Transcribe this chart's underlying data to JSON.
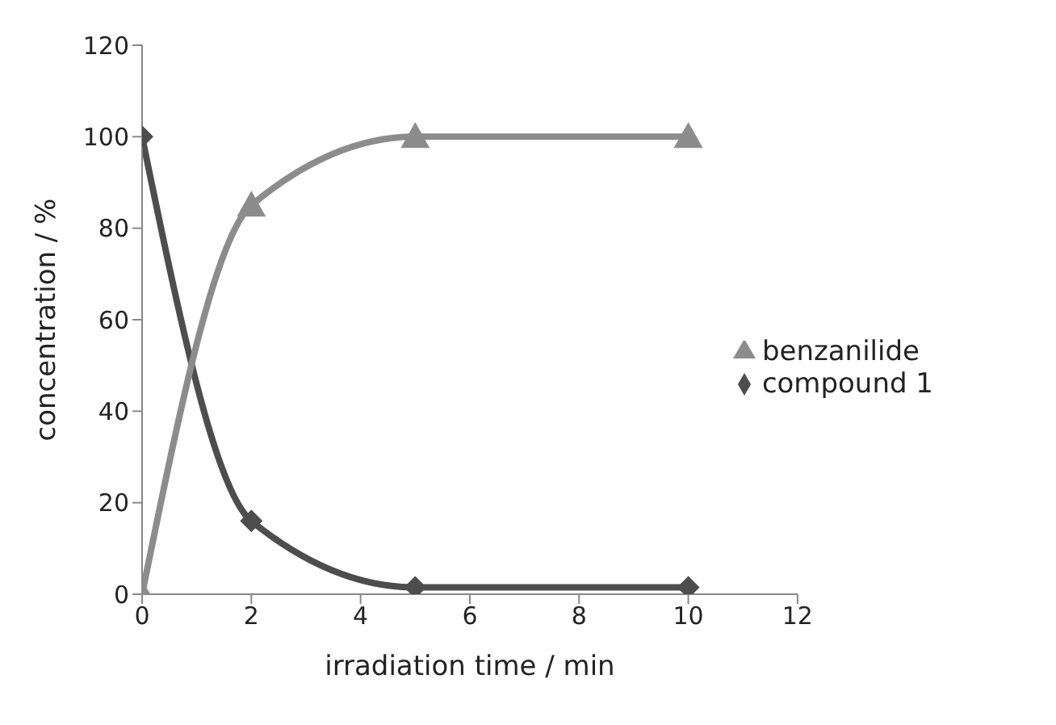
{
  "chart_data": {
    "type": "line",
    "xlabel": "irradiation time / min",
    "ylabel": "concentration / %",
    "x": [
      0,
      2,
      5,
      10
    ],
    "series": [
      {
        "name": "compound 1",
        "color": "#4d4d4d",
        "values": [
          100,
          16,
          1.5,
          1.5
        ],
        "marker": "diamond"
      },
      {
        "name": "benzanilide",
        "color": "#8c8c8c",
        "values": [
          0,
          85,
          100,
          100
        ],
        "marker": "triangle"
      }
    ],
    "xlim": [
      0,
      12
    ],
    "xticks": [
      0,
      2,
      4,
      6,
      8,
      10,
      12
    ],
    "ylim": [
      0,
      120
    ],
    "yticks": [
      0,
      20,
      40,
      60,
      80,
      100,
      120
    ],
    "grid": false,
    "legend": "right",
    "line_style": "solid"
  }
}
